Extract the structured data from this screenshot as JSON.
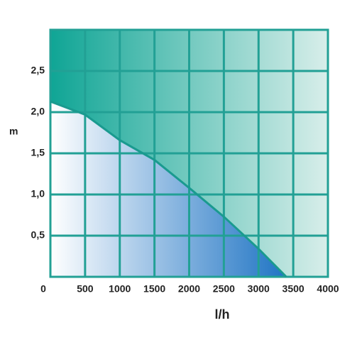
{
  "chart_data": {
    "type": "line",
    "x_label": "l/h",
    "y_label": "m",
    "x": [
      0,
      500,
      1000,
      1500,
      2000,
      2500,
      3000,
      3400
    ],
    "series": [
      {
        "color": "#1a9a8f",
        "values": [
          2.13,
          1.97,
          1.66,
          1.42,
          1.08,
          0.73,
          0.34,
          0
        ]
      }
    ],
    "xlim": [
      0,
      4000
    ],
    "xticks": [
      0,
      500,
      1000,
      1500,
      2000,
      2500,
      3000,
      3500,
      4000
    ],
    "ylim": [
      0,
      3
    ],
    "yticks": [
      {
        "value": 0.5,
        "label": "0,5"
      },
      {
        "value": 1.0,
        "label": "1,0"
      },
      {
        "value": 1.5,
        "label": "1,5"
      },
      {
        "value": 2.0,
        "label": "2,0"
      },
      {
        "value": 2.5,
        "label": "2,5"
      }
    ],
    "grid": true
  }
}
